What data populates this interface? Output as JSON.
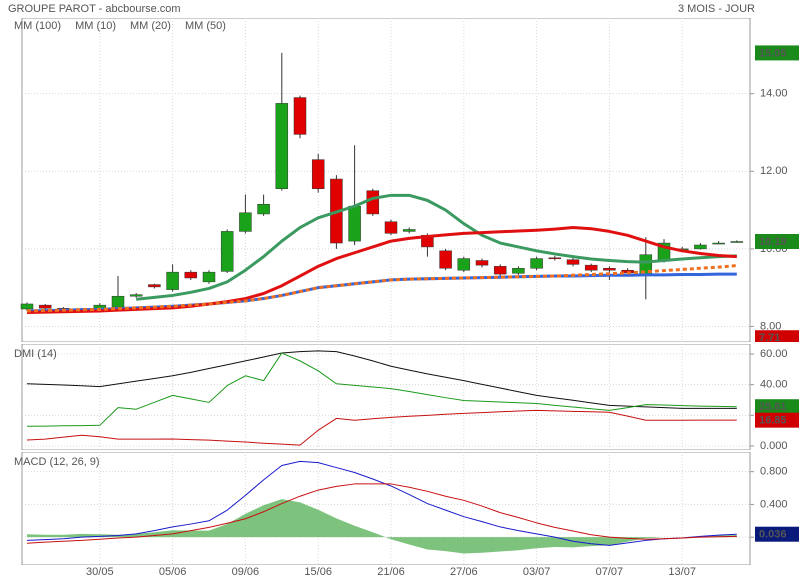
{
  "chart_data": [
    {
      "type": "candlestick",
      "title": "GROUPE PAROT - abcbourse.com",
      "subtitle": "3 MOIS - JOUR",
      "up_color": "#1aa31a",
      "down_color": "#e00000",
      "open": [
        8.45,
        8.55,
        8.47,
        8.44,
        8.42,
        8.5,
        8.78,
        9.08,
        8.95,
        9.4,
        9.15,
        9.42,
        10.45,
        10.9,
        11.55,
        13.9,
        12.3,
        11.8,
        10.2,
        11.5,
        10.7,
        10.45,
        10.35,
        9.95,
        9.45,
        9.7,
        9.55,
        9.37,
        9.5,
        9.77,
        9.72,
        9.58,
        9.5,
        9.45,
        9.35,
        9.7,
        10.0,
        10.0,
        10.15,
        10.19
      ],
      "high": [
        8.62,
        8.58,
        8.5,
        8.48,
        8.6,
        9.3,
        8.86,
        9.1,
        9.6,
        9.45,
        9.45,
        10.5,
        11.4,
        11.4,
        15.05,
        13.95,
        12.45,
        11.9,
        12.67,
        11.55,
        10.75,
        10.55,
        10.4,
        10.0,
        9.8,
        9.75,
        9.6,
        9.55,
        9.8,
        9.82,
        9.78,
        9.62,
        9.55,
        9.5,
        10.3,
        10.25,
        10.05,
        10.15,
        10.2,
        10.22
      ],
      "low": [
        8.4,
        8.44,
        8.42,
        8.4,
        8.38,
        8.4,
        8.74,
        8.98,
        8.9,
        9.2,
        9.1,
        9.38,
        10.4,
        10.85,
        11.5,
        12.85,
        11.45,
        10.0,
        10.1,
        10.85,
        10.35,
        10.4,
        9.8,
        9.45,
        9.4,
        9.52,
        9.3,
        9.33,
        9.45,
        9.7,
        9.55,
        9.4,
        9.2,
        9.33,
        8.7,
        9.65,
        9.95,
        9.98,
        10.12,
        10.16
      ],
      "close": [
        8.58,
        8.47,
        8.45,
        8.46,
        8.55,
        8.78,
        8.82,
        9.02,
        9.4,
        9.25,
        9.4,
        10.45,
        10.93,
        11.15,
        13.75,
        12.95,
        11.55,
        10.15,
        11.1,
        10.9,
        10.4,
        10.5,
        10.05,
        9.5,
        9.75,
        9.58,
        9.35,
        9.5,
        9.75,
        9.75,
        9.6,
        9.45,
        9.45,
        9.38,
        9.85,
        10.15,
        10.0,
        10.1,
        10.15,
        10.19
      ],
      "series": [
        {
          "name": "MM (100)",
          "color": "#3366dd",
          "dashed": false,
          "values": [
            8.4,
            8.41,
            8.42,
            8.43,
            8.44,
            8.46,
            8.48,
            8.5,
            8.52,
            8.55,
            8.58,
            8.62,
            8.66,
            8.72,
            8.8,
            8.9,
            9.0,
            9.05,
            9.1,
            9.15,
            9.2,
            9.22,
            9.23,
            9.24,
            9.25,
            9.26,
            9.27,
            9.28,
            9.29,
            9.3,
            9.3,
            9.31,
            9.32,
            9.32,
            9.33,
            9.33,
            9.34,
            9.34,
            9.35,
            9.35
          ]
        },
        {
          "name": "MM (10)",
          "color": "#3a9a60",
          "dashed": false,
          "values": [
            null,
            null,
            null,
            null,
            null,
            null,
            8.7,
            8.75,
            8.8,
            8.88,
            8.98,
            9.15,
            9.45,
            9.8,
            10.2,
            10.55,
            10.8,
            10.95,
            11.1,
            11.3,
            11.38,
            11.38,
            11.25,
            11.0,
            10.65,
            10.35,
            10.15,
            10.05,
            9.95,
            9.87,
            9.8,
            9.74,
            9.7,
            9.67,
            9.66,
            9.7,
            9.74,
            9.77,
            9.8,
            9.82
          ]
        },
        {
          "name": "MM (20)",
          "color": "#e01010",
          "dashed": false,
          "values": [
            8.36,
            8.37,
            8.38,
            8.39,
            8.4,
            8.42,
            8.44,
            8.46,
            8.48,
            8.52,
            8.58,
            8.64,
            8.72,
            8.85,
            9.05,
            9.3,
            9.55,
            9.75,
            9.9,
            10.05,
            10.2,
            10.27,
            10.32,
            10.36,
            10.4,
            10.42,
            10.44,
            10.46,
            10.48,
            10.51,
            10.55,
            10.52,
            10.45,
            10.35,
            10.2,
            10.05,
            9.95,
            9.88,
            9.83,
            9.8
          ]
        },
        {
          "name": "MM (50)",
          "color": "#f07020",
          "dashed": true,
          "values": [
            8.4,
            8.41,
            8.42,
            8.43,
            8.44,
            8.46,
            8.48,
            8.5,
            8.52,
            8.55,
            8.58,
            8.62,
            8.66,
            8.72,
            8.8,
            8.9,
            9.0,
            9.05,
            9.1,
            9.15,
            9.2,
            9.22,
            9.23,
            9.24,
            9.25,
            9.26,
            9.27,
            9.28,
            9.29,
            9.3,
            9.32,
            9.34,
            9.36,
            9.38,
            9.41,
            9.44,
            9.47,
            9.5,
            9.53,
            9.57
          ]
        }
      ],
      "ylim": [
        7.6,
        15.95
      ],
      "yticks": [
        {
          "value": 8,
          "label": "8.00"
        },
        {
          "value": 10,
          "label": "10.00"
        },
        {
          "value": 12,
          "label": "12.00"
        },
        {
          "value": 14,
          "label": "14.00"
        }
      ],
      "value_boxes": [
        {
          "value": 15.05,
          "color": "#1a8a1a"
        },
        {
          "value": 10.19,
          "color": "#1a8a1a"
        },
        {
          "value": 7.71,
          "color": "#d00000"
        }
      ],
      "grid": true
    },
    {
      "type": "line",
      "title": "DMI (14)",
      "series": [
        {
          "color": "#111111",
          "values": [
            40.6,
            40.2,
            39.8,
            39.3,
            38.7,
            40.5,
            42.3,
            44,
            45.8,
            48,
            50.5,
            53,
            55.5,
            58,
            60.6,
            61.5,
            62,
            61.5,
            58.7,
            55.5,
            52,
            49.5,
            47,
            44.8,
            42.6,
            40.2,
            37.8,
            35.4,
            33,
            31.4,
            29.8,
            28.1,
            26.5,
            26,
            25.5,
            25,
            24.5,
            24.5,
            24.5,
            24.5
          ]
        },
        {
          "color": "#1a9a1a",
          "values": [
            12.9,
            13,
            13.2,
            13.3,
            13.5,
            25,
            24,
            28.5,
            33,
            30.7,
            28.4,
            39.4,
            45.8,
            42.6,
            60.6,
            55.5,
            49,
            40.6,
            39.5,
            38.5,
            37.4,
            35.5,
            33.5,
            31.5,
            29.7,
            29.2,
            28.7,
            28.2,
            27.7,
            26.5,
            25.4,
            24.3,
            23.2,
            25,
            27,
            26.7,
            26.3,
            26,
            25.8,
            25.61
          ]
        },
        {
          "color": "#c81010",
          "values": [
            3.9,
            4.5,
            5.8,
            7,
            6,
            4.5,
            4.5,
            4.5,
            4.6,
            4.2,
            3.8,
            3.2,
            2.6,
            1.8,
            1.2,
            0.6,
            10.3,
            18,
            16.8,
            17.8,
            18.7,
            19.4,
            20,
            20.7,
            21.3,
            21.8,
            22.3,
            22.8,
            23.2,
            22.9,
            22.6,
            22.3,
            22,
            19.5,
            16.8,
            16.8,
            16.8,
            16.9,
            16.9,
            16.85
          ]
        }
      ],
      "ylim": [
        -2.6,
        66.5
      ],
      "yticks": [
        {
          "value": 0,
          "label": "0.000"
        },
        {
          "value": 20,
          "label": "20.00"
        },
        {
          "value": 40,
          "label": "40.00"
        },
        {
          "value": 60,
          "label": "60.00"
        }
      ],
      "value_boxes": [
        {
          "value": 25.61,
          "color": "#1a8a1a"
        },
        {
          "value": 16.85,
          "color": "#d00000"
        }
      ],
      "grid": true
    },
    {
      "type": "macd",
      "title": "MACD (12, 26, 9)",
      "categories": [
        null,
        null,
        null,
        null,
        "30/05",
        null,
        null,
        null,
        "05/06",
        null,
        null,
        null,
        "09/06",
        null,
        null,
        null,
        "15/06",
        null,
        null,
        null,
        "21/06",
        null,
        null,
        null,
        "27/06",
        null,
        null,
        null,
        "03/07",
        null,
        null,
        null,
        "07/07",
        null,
        null,
        null,
        "13/07",
        null,
        null,
        null
      ],
      "histogram": {
        "color": "#66b866",
        "values": [
          0.035,
          0.03,
          0.03,
          0.04,
          0.035,
          0.03,
          0.04,
          0.06,
          0.085,
          0.08,
          0.08,
          0.16,
          0.285,
          0.39,
          0.465,
          0.425,
          0.335,
          0.23,
          0.14,
          0.06,
          -0.025,
          -0.09,
          -0.15,
          -0.17,
          -0.2,
          -0.19,
          -0.175,
          -0.16,
          -0.135,
          -0.12,
          -0.125,
          -0.11,
          -0.1,
          -0.055,
          -0.015,
          0,
          0,
          0.01,
          0.02,
          0.026
        ]
      },
      "series": [
        {
          "color": "#1a1acc",
          "values": [
            -0.04,
            -0.03,
            -0.02,
            0,
            0.01,
            0.02,
            0.04,
            0.08,
            0.125,
            0.16,
            0.2,
            0.33,
            0.51,
            0.7,
            0.875,
            0.925,
            0.91,
            0.85,
            0.79,
            0.71,
            0.625,
            0.52,
            0.41,
            0.33,
            0.25,
            0.19,
            0.125,
            0.08,
            0.04,
            0,
            -0.05,
            -0.08,
            -0.1,
            -0.07,
            -0.04,
            -0.02,
            -0.01,
            0.01,
            0.025,
            0.036
          ]
        },
        {
          "color": "#c81010",
          "values": [
            -0.075,
            -0.06,
            -0.05,
            -0.04,
            -0.025,
            -0.01,
            0,
            0.02,
            0.04,
            0.08,
            0.12,
            0.17,
            0.225,
            0.31,
            0.41,
            0.5,
            0.575,
            0.62,
            0.65,
            0.65,
            0.65,
            0.61,
            0.56,
            0.5,
            0.45,
            0.38,
            0.3,
            0.24,
            0.175,
            0.12,
            0.075,
            0.03,
            0,
            -0.015,
            -0.025,
            -0.02,
            -0.01,
            0,
            0.005,
            0.01
          ]
        }
      ],
      "ylim": [
        -0.34,
        1.04
      ],
      "yticks": [
        {
          "value": 0,
          "label": "0.000"
        },
        {
          "value": 0.4,
          "label": "0.400"
        },
        {
          "value": 0.8,
          "label": "0.800"
        }
      ],
      "value_boxes": [
        {
          "value": 0.036,
          "color": "#0a1a7a"
        }
      ],
      "grid": true
    }
  ]
}
